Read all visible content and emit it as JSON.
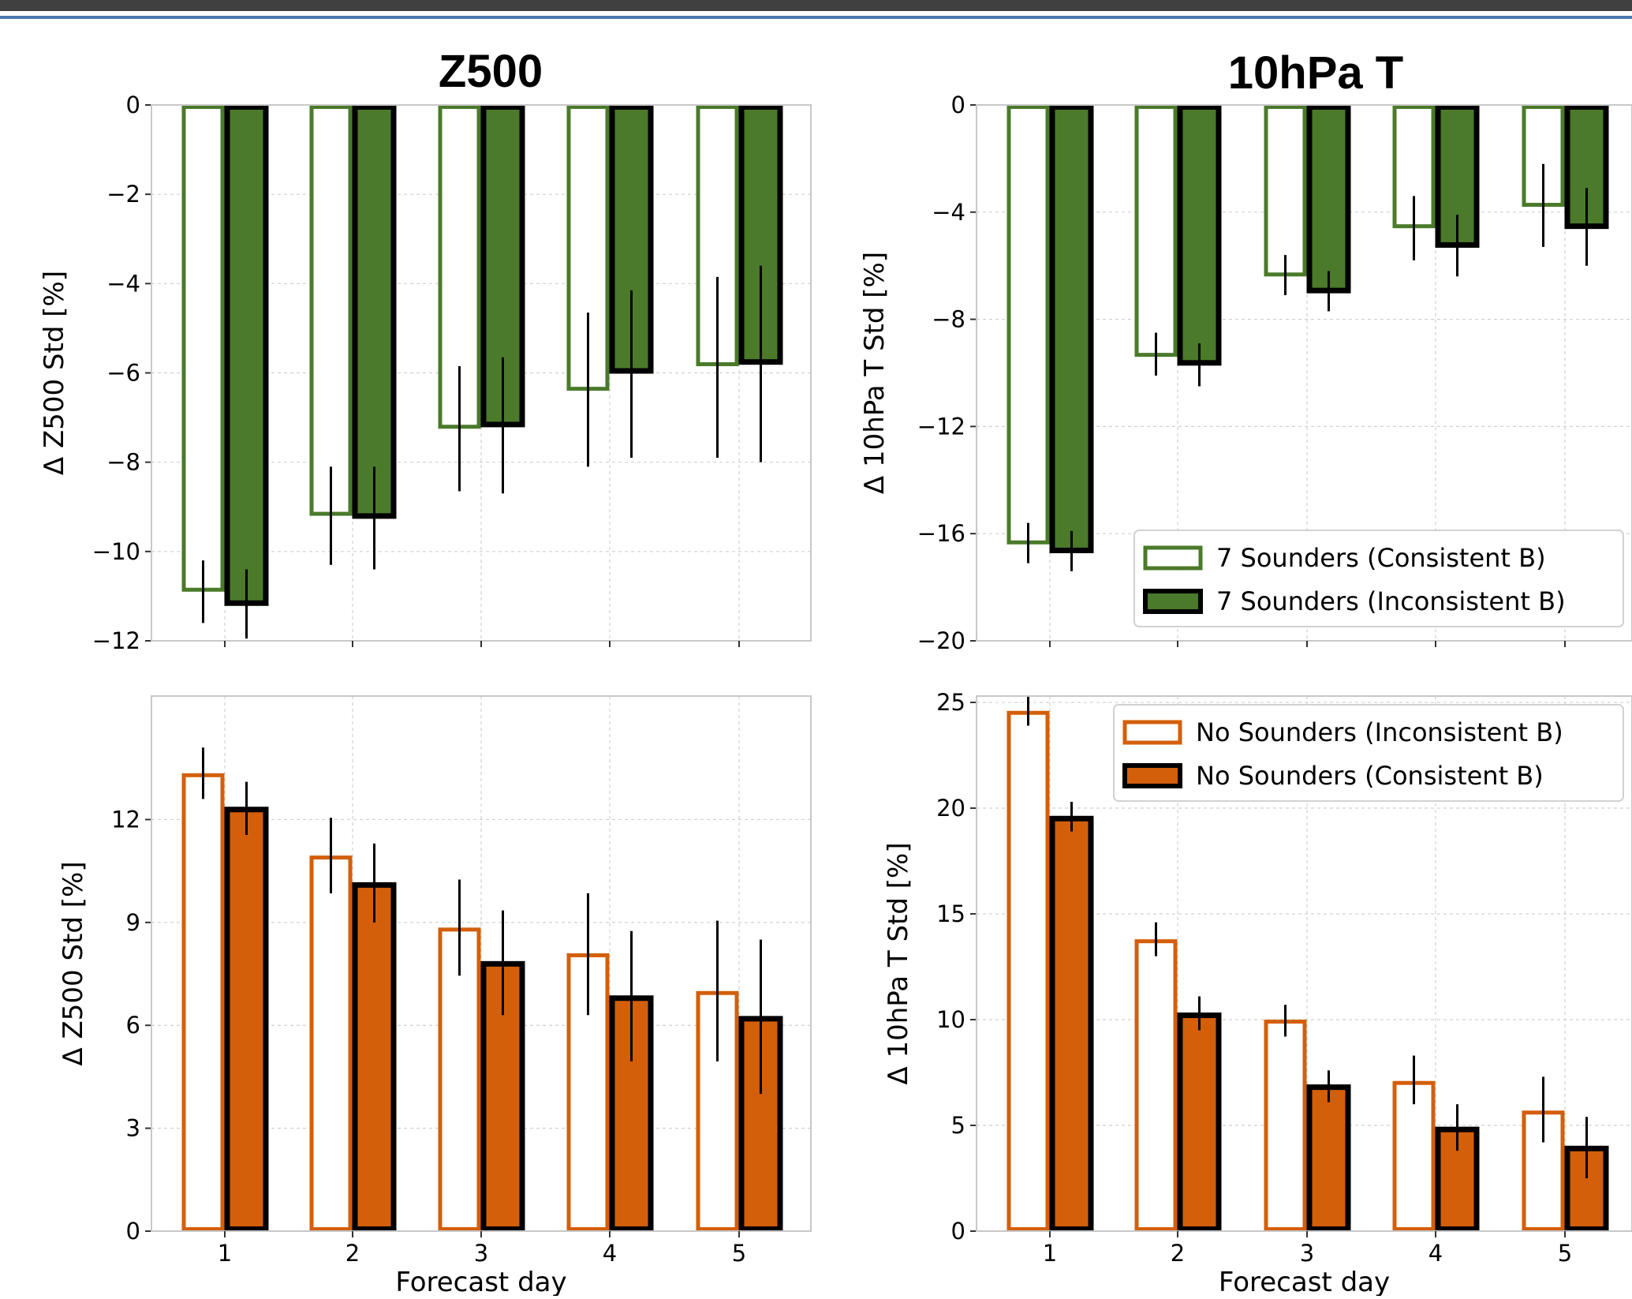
{
  "panel_titles": [
    "Z500",
    "10hPa T"
  ],
  "colors": {
    "green": "#4a7a2a",
    "orange": "#d35f0a",
    "outline_dark": "#000000",
    "grid": "#d0d0d0",
    "top_bar": "#404040",
    "top_line": "#4a78b0"
  },
  "chart_data": [
    {
      "type": "bar",
      "panel": "top-left",
      "ylabel": "Δ Z500 Std [%]",
      "xlabel": "",
      "ylim": [
        -12,
        0
      ],
      "yticks": [
        0,
        -2,
        -4,
        -6,
        -8,
        -10,
        -12
      ],
      "ytick_labels": [
        "0",
        "−2",
        "−4",
        "−6",
        "−8",
        "−10",
        "−12"
      ],
      "categories": [
        "1",
        "2",
        "3",
        "4",
        "5"
      ],
      "show_xtick_labels": false,
      "series": [
        {
          "style": "hollow",
          "color": "#4a7a2a",
          "values": [
            -10.9,
            -9.2,
            -7.25,
            -6.4,
            -5.85
          ],
          "err_low": [
            -11.6,
            -10.3,
            -8.65,
            -8.1,
            -7.9
          ],
          "err_high": [
            -10.2,
            -8.1,
            -5.85,
            -4.65,
            -3.85
          ]
        },
        {
          "style": "filled",
          "color": "#4a7a2a",
          "values": [
            -11.2,
            -9.25,
            -7.2,
            -6.0,
            -5.8
          ],
          "err_low": [
            -11.95,
            -10.4,
            -8.7,
            -7.9,
            -8.0
          ],
          "err_high": [
            -10.4,
            -8.1,
            -5.65,
            -4.15,
            -3.6
          ]
        }
      ]
    },
    {
      "type": "bar",
      "panel": "top-right",
      "ylabel": "Δ 10hPa T Std [%]",
      "xlabel": "",
      "ylim": [
        -20,
        0
      ],
      "yticks": [
        0,
        -4,
        -8,
        -12,
        -16,
        -20
      ],
      "ytick_labels": [
        "0",
        "−4",
        "−8",
        "−12",
        "−16",
        "−20"
      ],
      "categories": [
        "1",
        "2",
        "3",
        "4",
        "5"
      ],
      "show_xtick_labels": false,
      "legend": {
        "placement": "lower-right",
        "entries": [
          "7 Sounders (Consistent B)",
          "7 Sounders (Inconsistent B)"
        ]
      },
      "series": [
        {
          "name": "7 Sounders (Consistent B)",
          "style": "hollow",
          "color": "#4a7a2a",
          "values": [
            -16.4,
            -9.4,
            -6.4,
            -4.6,
            -3.8
          ],
          "err_low": [
            -17.1,
            -10.1,
            -7.1,
            -5.8,
            -5.3
          ],
          "err_high": [
            -15.6,
            -8.5,
            -5.6,
            -3.4,
            -2.2
          ]
        },
        {
          "name": "7 Sounders (Inconsistent B)",
          "style": "filled",
          "color": "#4a7a2a",
          "values": [
            -16.7,
            -9.7,
            -7.0,
            -5.3,
            -4.6
          ],
          "err_low": [
            -17.4,
            -10.5,
            -7.7,
            -6.4,
            -6.0
          ],
          "err_high": [
            -15.9,
            -8.9,
            -6.2,
            -4.1,
            -3.1
          ]
        }
      ]
    },
    {
      "type": "bar",
      "panel": "bottom-left",
      "ylabel": "Δ Z500 Std [%]",
      "xlabel": "Forecast day",
      "ylim": [
        0,
        15.6
      ],
      "yticks": [
        0,
        3,
        6,
        9,
        12
      ],
      "ytick_labels": [
        "0",
        "3",
        "6",
        "9",
        "12"
      ],
      "categories": [
        "1",
        "2",
        "3",
        "4",
        "5"
      ],
      "show_xtick_labels": true,
      "series": [
        {
          "style": "hollow",
          "color": "#d35f0a",
          "values": [
            13.35,
            10.95,
            8.85,
            8.1,
            7.0
          ],
          "err_low": [
            12.6,
            9.85,
            7.45,
            6.3,
            4.95
          ],
          "err_high": [
            14.1,
            12.05,
            10.25,
            9.85,
            9.05
          ]
        },
        {
          "style": "filled",
          "color": "#d35f0a",
          "values": [
            12.35,
            10.15,
            7.85,
            6.85,
            6.25
          ],
          "err_low": [
            11.55,
            9.0,
            6.3,
            4.95,
            4.0
          ],
          "err_high": [
            13.1,
            11.3,
            9.35,
            8.75,
            8.5
          ]
        }
      ]
    },
    {
      "type": "bar",
      "panel": "bottom-right",
      "ylabel": "Δ 10hPa T Std [%]",
      "xlabel": "Forecast day",
      "ylim": [
        0,
        25.3
      ],
      "yticks": [
        0,
        5,
        10,
        15,
        20,
        25
      ],
      "ytick_labels": [
        "0",
        "5",
        "10",
        "15",
        "20",
        "25"
      ],
      "categories": [
        "1",
        "2",
        "3",
        "4",
        "5"
      ],
      "show_xtick_labels": true,
      "legend": {
        "placement": "upper-right",
        "entries": [
          "No Sounders (Inconsistent B)",
          "No Sounders (Consistent B)"
        ]
      },
      "series": [
        {
          "name": "No Sounders (Inconsistent B)",
          "style": "hollow",
          "color": "#d35f0a",
          "values": [
            24.6,
            13.8,
            10.0,
            7.1,
            5.7
          ],
          "err_low": [
            23.9,
            13.0,
            9.2,
            6.0,
            4.2
          ],
          "err_high": [
            25.3,
            14.6,
            10.7,
            8.3,
            7.3
          ]
        },
        {
          "name": "No Sounders (Consistent B)",
          "style": "filled",
          "color": "#d35f0a",
          "values": [
            19.6,
            10.3,
            6.9,
            4.9,
            4.0
          ],
          "err_low": [
            18.9,
            9.5,
            6.1,
            3.8,
            2.5
          ],
          "err_high": [
            20.3,
            11.1,
            7.6,
            6.0,
            5.4
          ]
        }
      ]
    }
  ]
}
